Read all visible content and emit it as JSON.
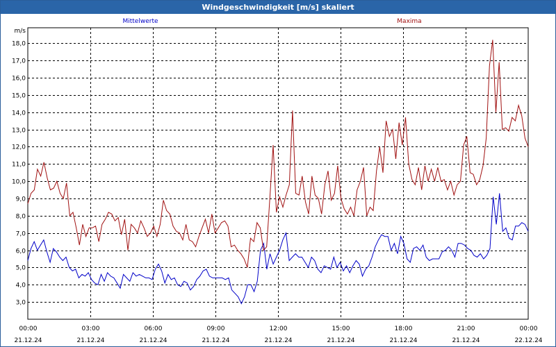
{
  "window": {
    "title": "Windgeschwindigkeit [m/s] skaliert"
  },
  "chart_data": {
    "type": "line",
    "unit": "m/s",
    "ylim": [
      2,
      18.9
    ],
    "xlim": [
      0,
      24
    ],
    "grid": true,
    "y_ticks": [
      "3,0",
      "4,0",
      "5,0",
      "6,0",
      "7,0",
      "8,0",
      "9,0",
      "10,0",
      "11,0",
      "12,0",
      "13,0",
      "14,0",
      "15,0",
      "16,0",
      "17,0",
      "18,0"
    ],
    "x_ticks": [
      {
        "time": "00:00",
        "date": "21.12.24"
      },
      {
        "time": "03:00",
        "date": "21.12.24"
      },
      {
        "time": "06:00",
        "date": "21.12.24"
      },
      {
        "time": "09:00",
        "date": "21.12.24"
      },
      {
        "time": "12:00",
        "date": "21.12.24"
      },
      {
        "time": "15:00",
        "date": "21.12.24"
      },
      {
        "time": "18:00",
        "date": "21.12.24"
      },
      {
        "time": "21:00",
        "date": "21.12.24"
      },
      {
        "time": "00:00",
        "date": "22.12.24"
      }
    ],
    "series": [
      {
        "name": "Mittelwerte",
        "color": "#0000c8",
        "values": [
          5.4,
          6.1,
          6.5,
          6.0,
          6.3,
          6.6,
          5.9,
          5.3,
          6.1,
          5.9,
          5.6,
          5.4,
          5.6,
          5.0,
          4.8,
          4.9,
          4.4,
          4.6,
          4.5,
          4.7,
          4.3,
          4.1,
          4.0,
          4.6,
          4.2,
          4.7,
          4.5,
          4.4,
          4.1,
          3.8,
          4.6,
          4.4,
          4.2,
          4.7,
          4.5,
          4.6,
          4.5,
          4.4,
          4.4,
          4.3,
          4.9,
          5.2,
          4.8,
          4.1,
          4.6,
          4.3,
          4.4,
          4.0,
          3.9,
          4.2,
          4.1,
          3.7,
          3.9,
          4.3,
          4.5,
          4.8,
          4.9,
          4.5,
          4.4,
          4.4,
          4.4,
          4.4,
          4.3,
          4.4,
          3.7,
          3.5,
          3.3,
          2.9,
          3.3,
          4.0,
          4.0,
          3.6,
          4.2,
          6.0,
          6.4,
          4.9,
          5.8,
          5.2,
          5.6,
          6.0,
          6.6,
          7.0,
          5.4,
          5.6,
          5.8,
          5.6,
          5.6,
          5.3,
          5.0,
          5.6,
          5.4,
          4.9,
          4.7,
          5.1,
          5.0,
          4.9,
          5.6,
          5.0,
          5.3,
          4.8,
          5.1,
          4.7,
          5.1,
          5.4,
          5.2,
          4.5,
          4.9,
          5.1,
          5.6,
          6.2,
          6.6,
          6.9,
          6.8,
          6.8,
          6.0,
          6.4,
          5.8,
          6.8,
          6.4,
          5.5,
          5.3,
          6.1,
          6.2,
          6.0,
          6.3,
          5.6,
          5.4,
          5.5,
          5.5,
          5.5,
          5.9,
          6.0,
          6.2,
          6.0,
          5.6,
          6.4,
          6.4,
          6.3,
          6.1,
          6.0,
          5.7,
          5.6,
          5.8,
          5.5,
          5.7,
          6.1,
          9.1,
          7.5,
          9.3,
          7.1,
          7.3,
          6.7,
          6.6,
          7.4,
          7.4,
          7.6,
          7.5,
          7.1
        ]
      },
      {
        "name": "Maxima",
        "color": "#a01010",
        "values": [
          8.7,
          9.3,
          9.5,
          10.7,
          10.3,
          11.1,
          10.2,
          9.5,
          9.6,
          10.0,
          9.3,
          9.0,
          9.9,
          8.0,
          8.2,
          7.3,
          6.3,
          7.5,
          6.8,
          7.3,
          7.3,
          7.4,
          6.5,
          7.5,
          7.8,
          8.2,
          8.1,
          7.7,
          7.9,
          6.9,
          7.8,
          6.0,
          7.5,
          7.3,
          7.0,
          7.7,
          7.3,
          6.8,
          7.0,
          7.4,
          6.8,
          7.5,
          8.9,
          8.3,
          8.1,
          7.4,
          7.1,
          7.0,
          6.6,
          7.5,
          6.6,
          6.5,
          6.2,
          6.8,
          7.3,
          7.8,
          7.0,
          8.1,
          7.0,
          7.3,
          7.6,
          7.7,
          7.4,
          6.2,
          6.3,
          6.0,
          5.8,
          5.5,
          5.0,
          6.7,
          6.5,
          7.6,
          7.3,
          6.0,
          6.2,
          9.1,
          12.1,
          8.2,
          9.1,
          8.5,
          9.2,
          9.8,
          14.1,
          9.3,
          9.2,
          10.3,
          8.8,
          8.1,
          10.3,
          9.2,
          9.0,
          8.1,
          9.8,
          10.6,
          8.9,
          9.3,
          10.9,
          9.0,
          8.4,
          8.1,
          8.5,
          8.0,
          9.5,
          10.0,
          10.8,
          8.0,
          8.5,
          8.3,
          10.6,
          12.0,
          10.5,
          13.5,
          12.6,
          13.0,
          11.3,
          13.4,
          12.1,
          13.7,
          11.0,
          10.1,
          9.8,
          10.8,
          9.5,
          10.9,
          10.0,
          10.7,
          10.0,
          10.8,
          10.0,
          10.1,
          9.5,
          10.0,
          9.2,
          9.8,
          10.0,
          12.1,
          12.6,
          10.5,
          10.4,
          9.8,
          10.1,
          10.9,
          12.5,
          16.7,
          18.2,
          14.0,
          16.9,
          13.0,
          13.1,
          12.9,
          13.7,
          13.5,
          14.4,
          13.8,
          12.5,
          12.0
        ]
      }
    ]
  }
}
